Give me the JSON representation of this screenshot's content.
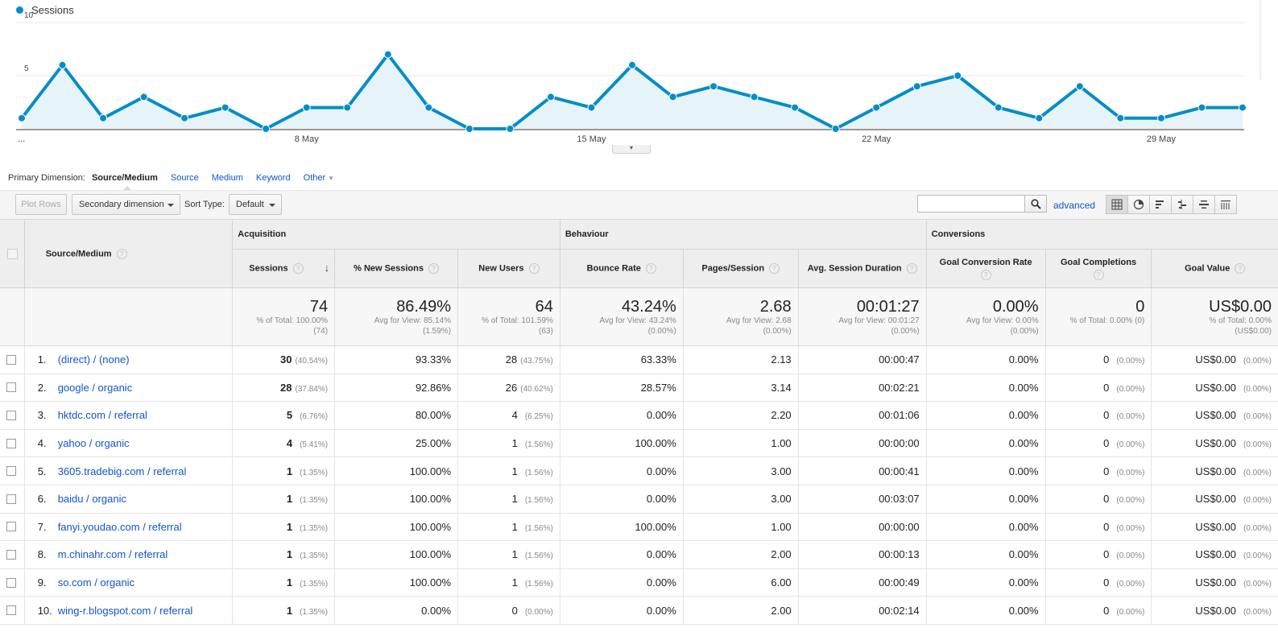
{
  "chart": {
    "legend_label": "Sessions",
    "series_color": "#058dc7"
  },
  "chart_data": {
    "type": "area",
    "series": [
      {
        "name": "Sessions",
        "values": [
          1,
          6,
          1,
          3,
          1,
          2,
          0,
          2,
          2,
          7,
          2,
          0,
          0,
          3,
          2,
          6,
          3,
          4,
          3,
          2,
          0,
          2,
          4,
          5,
          2,
          1,
          4,
          1,
          1,
          2,
          2
        ]
      }
    ],
    "x_tick_labels": [
      "...",
      "8 May",
      "15 May",
      "22 May",
      "29 May"
    ],
    "y_tick_labels": [
      "5",
      "10"
    ],
    "ylim": [
      0,
      10
    ],
    "grid": true
  },
  "dimension_bar": {
    "label": "Primary Dimension:",
    "current": "Source/Medium",
    "options": [
      "Source",
      "Medium",
      "Keyword"
    ],
    "other": "Other"
  },
  "toolbar": {
    "plot_rows": "Plot Rows",
    "secondary_dimension": "Secondary dimension",
    "sort_type_label": "Sort Type:",
    "sort_type_value": "Default",
    "search_placeholder": "",
    "advanced": "advanced"
  },
  "table": {
    "groups": {
      "acquisition": "Acquisition",
      "behaviour": "Behaviour",
      "conversions": "Conversions"
    },
    "columns": {
      "source_medium": "Source/Medium",
      "sessions": "Sessions",
      "new_sessions": "% New Sessions",
      "new_users": "New Users",
      "bounce_rate": "Bounce Rate",
      "pages_session": "Pages/Session",
      "avg_duration": "Avg. Session Duration",
      "goal_conv_rate": "Goal Conversion Rate",
      "goal_completions": "Goal Completions",
      "goal_value": "Goal Value"
    },
    "totals": {
      "sessions": {
        "value": "74",
        "l1": "% of Total: 100.00%",
        "l2": "(74)"
      },
      "new_sessions": {
        "value": "86.49%",
        "l1": "Avg for View: 85.14%",
        "l2": "(1.59%)"
      },
      "new_users": {
        "value": "64",
        "l1": "% of Total: 101.59%",
        "l2": "(63)"
      },
      "bounce_rate": {
        "value": "43.24%",
        "l1": "Avg for View: 43.24%",
        "l2": "(0.00%)"
      },
      "pages_session": {
        "value": "2.68",
        "l1": "Avg for View: 2.68",
        "l2": "(0.00%)"
      },
      "avg_duration": {
        "value": "00:01:27",
        "l1": "Avg for View: 00:01:27",
        "l2": "(0.00%)"
      },
      "goal_conv_rate": {
        "value": "0.00%",
        "l1": "Avg for View: 0.00%",
        "l2": "(0.00%)"
      },
      "goal_completions": {
        "value": "0",
        "l1": "% of Total: 0.00% (0)",
        "l2": ""
      },
      "goal_value": {
        "value": "US$0.00",
        "l1": "% of Total: 0.00%",
        "l2": "(US$0.00)"
      }
    },
    "rows": [
      {
        "idx": "1.",
        "source": "(direct) / (none)",
        "sessions": "30",
        "sessions_pct": "(40.54%)",
        "new_sessions": "93.33%",
        "new_users": "28",
        "new_users_pct": "(43.75%)",
        "bounce_rate": "63.33%",
        "pages_session": "2.13",
        "avg_duration": "00:00:47",
        "goal_conv_rate": "0.00%",
        "goal_completions": "0",
        "goal_completions_pct": "(0.00%)",
        "goal_value": "US$0.00",
        "goal_value_pct": "(0.00%)"
      },
      {
        "idx": "2.",
        "source": "google / organic",
        "sessions": "28",
        "sessions_pct": "(37.84%)",
        "new_sessions": "92.86%",
        "new_users": "26",
        "new_users_pct": "(40.62%)",
        "bounce_rate": "28.57%",
        "pages_session": "3.14",
        "avg_duration": "00:02:21",
        "goal_conv_rate": "0.00%",
        "goal_completions": "0",
        "goal_completions_pct": "(0.00%)",
        "goal_value": "US$0.00",
        "goal_value_pct": "(0.00%)"
      },
      {
        "idx": "3.",
        "source": "hktdc.com / referral",
        "sessions": "5",
        "sessions_pct": "(6.76%)",
        "new_sessions": "80.00%",
        "new_users": "4",
        "new_users_pct": "(6.25%)",
        "bounce_rate": "0.00%",
        "pages_session": "2.20",
        "avg_duration": "00:01:06",
        "goal_conv_rate": "0.00%",
        "goal_completions": "0",
        "goal_completions_pct": "(0.00%)",
        "goal_value": "US$0.00",
        "goal_value_pct": "(0.00%)"
      },
      {
        "idx": "4.",
        "source": "yahoo / organic",
        "sessions": "4",
        "sessions_pct": "(5.41%)",
        "new_sessions": "25.00%",
        "new_users": "1",
        "new_users_pct": "(1.56%)",
        "bounce_rate": "100.00%",
        "pages_session": "1.00",
        "avg_duration": "00:00:00",
        "goal_conv_rate": "0.00%",
        "goal_completions": "0",
        "goal_completions_pct": "(0.00%)",
        "goal_value": "US$0.00",
        "goal_value_pct": "(0.00%)"
      },
      {
        "idx": "5.",
        "source": "3605.tradebig.com / referral",
        "sessions": "1",
        "sessions_pct": "(1.35%)",
        "new_sessions": "100.00%",
        "new_users": "1",
        "new_users_pct": "(1.56%)",
        "bounce_rate": "0.00%",
        "pages_session": "3.00",
        "avg_duration": "00:00:41",
        "goal_conv_rate": "0.00%",
        "goal_completions": "0",
        "goal_completions_pct": "(0.00%)",
        "goal_value": "US$0.00",
        "goal_value_pct": "(0.00%)"
      },
      {
        "idx": "6.",
        "source": "baidu / organic",
        "sessions": "1",
        "sessions_pct": "(1.35%)",
        "new_sessions": "100.00%",
        "new_users": "1",
        "new_users_pct": "(1.56%)",
        "bounce_rate": "0.00%",
        "pages_session": "3.00",
        "avg_duration": "00:03:07",
        "goal_conv_rate": "0.00%",
        "goal_completions": "0",
        "goal_completions_pct": "(0.00%)",
        "goal_value": "US$0.00",
        "goal_value_pct": "(0.00%)"
      },
      {
        "idx": "7.",
        "source": "fanyi.youdao.com / referral",
        "sessions": "1",
        "sessions_pct": "(1.35%)",
        "new_sessions": "100.00%",
        "new_users": "1",
        "new_users_pct": "(1.56%)",
        "bounce_rate": "100.00%",
        "pages_session": "1.00",
        "avg_duration": "00:00:00",
        "goal_conv_rate": "0.00%",
        "goal_completions": "0",
        "goal_completions_pct": "(0.00%)",
        "goal_value": "US$0.00",
        "goal_value_pct": "(0.00%)"
      },
      {
        "idx": "8.",
        "source": "m.chinahr.com / referral",
        "sessions": "1",
        "sessions_pct": "(1.35%)",
        "new_sessions": "100.00%",
        "new_users": "1",
        "new_users_pct": "(1.56%)",
        "bounce_rate": "0.00%",
        "pages_session": "2.00",
        "avg_duration": "00:00:13",
        "goal_conv_rate": "0.00%",
        "goal_completions": "0",
        "goal_completions_pct": "(0.00%)",
        "goal_value": "US$0.00",
        "goal_value_pct": "(0.00%)"
      },
      {
        "idx": "9.",
        "source": "so.com / organic",
        "sessions": "1",
        "sessions_pct": "(1.35%)",
        "new_sessions": "100.00%",
        "new_users": "1",
        "new_users_pct": "(1.56%)",
        "bounce_rate": "0.00%",
        "pages_session": "6.00",
        "avg_duration": "00:00:49",
        "goal_conv_rate": "0.00%",
        "goal_completions": "0",
        "goal_completions_pct": "(0.00%)",
        "goal_value": "US$0.00",
        "goal_value_pct": "(0.00%)"
      },
      {
        "idx": "10.",
        "source": "wing-r.blogspot.com / referral",
        "sessions": "1",
        "sessions_pct": "(1.35%)",
        "new_sessions": "0.00%",
        "new_users": "0",
        "new_users_pct": "(0.00%)",
        "bounce_rate": "0.00%",
        "pages_session": "2.00",
        "avg_duration": "00:02:14",
        "goal_conv_rate": "0.00%",
        "goal_completions": "0",
        "goal_completions_pct": "(0.00%)",
        "goal_value": "US$0.00",
        "goal_value_pct": "(0.00%)"
      }
    ]
  }
}
